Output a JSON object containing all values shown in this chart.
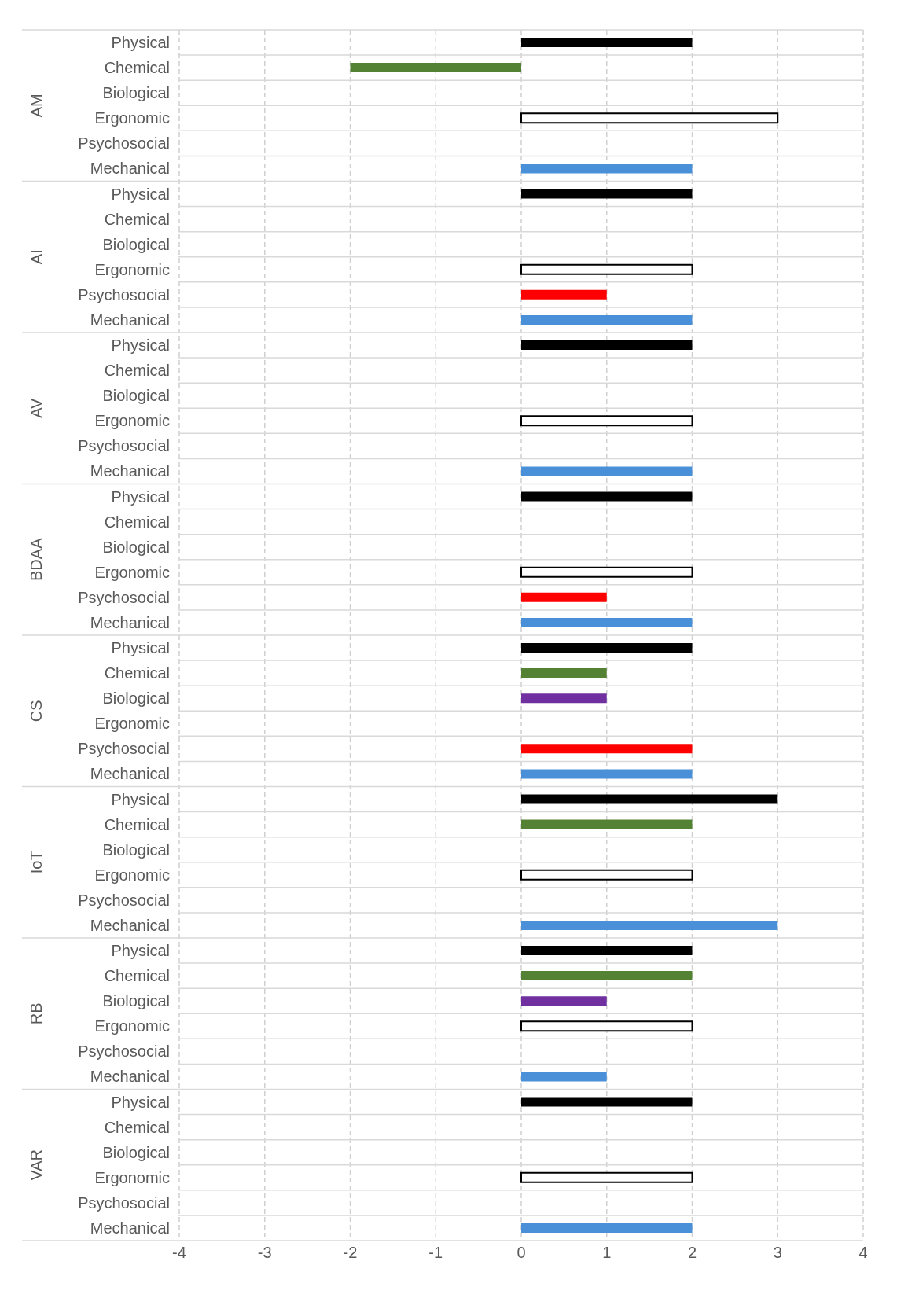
{
  "chart_data": {
    "type": "bar",
    "orientation": "horizontal",
    "categories": [
      "Physical",
      "Chemical",
      "Biological",
      "Ergonomic",
      "Psychosocial",
      "Mechanical",
      "Physical",
      "Chemical",
      "Biological",
      "Ergonomic",
      "Psychosocial",
      "Mechanical",
      "Physical",
      "Chemical",
      "Biological",
      "Ergonomic",
      "Psychosocial",
      "Mechanical",
      "Physical",
      "Chemical",
      "Biological",
      "Ergonomic",
      "Psychosocial",
      "Mechanical",
      "Physical",
      "Chemical",
      "Biological",
      "Ergonomic",
      "Psychosocial",
      "Mechanical",
      "Physical",
      "Chemical",
      "Biological",
      "Ergonomic",
      "Psychosocial",
      "Mechanical",
      "Physical",
      "Chemical",
      "Biological",
      "Ergonomic",
      "Psychosocial",
      "Mechanical",
      "Physical",
      "Chemical",
      "Biological",
      "Ergonomic",
      "Psychosocial",
      "Mechanical"
    ],
    "values": [
      2,
      -2,
      null,
      3,
      null,
      2,
      2,
      null,
      null,
      2,
      1,
      2,
      2,
      null,
      null,
      2,
      null,
      2,
      2,
      null,
      null,
      2,
      1,
      2,
      2,
      1,
      1,
      null,
      2,
      2,
      3,
      2,
      null,
      2,
      null,
      3,
      2,
      2,
      1,
      2,
      null,
      1,
      2,
      null,
      null,
      2,
      null,
      2
    ],
    "colors": [
      "#000000",
      "#548235",
      "#7030a0",
      "#ffffff",
      "#ff0000",
      "#4a90d9",
      "#000000",
      "#548235",
      "#7030a0",
      "#ffffff",
      "#ff0000",
      "#4a90d9",
      "#000000",
      "#548235",
      "#7030a0",
      "#ffffff",
      "#ff0000",
      "#4a90d9",
      "#000000",
      "#548235",
      "#7030a0",
      "#ffffff",
      "#ff0000",
      "#4a90d9",
      "#000000",
      "#548235",
      "#7030a0",
      "#ffffff",
      "#ff0000",
      "#4a90d9",
      "#000000",
      "#548235",
      "#7030a0",
      "#ffffff",
      "#ff0000",
      "#4a90d9",
      "#000000",
      "#548235",
      "#7030a0",
      "#ffffff",
      "#ff0000",
      "#4a90d9",
      "#000000",
      "#548235",
      "#7030a0",
      "#ffffff",
      "#ff0000",
      "#4a90d9"
    ],
    "annotations": [
      "AM",
      "AI",
      "AV",
      "BDAA",
      "CS",
      "IoT",
      "RB",
      "VAR"
    ],
    "xlim": [
      -4,
      4
    ],
    "xticks": [
      -4,
      -3,
      -2,
      -1,
      0,
      1,
      2,
      3,
      4
    ],
    "grid": "x"
  }
}
